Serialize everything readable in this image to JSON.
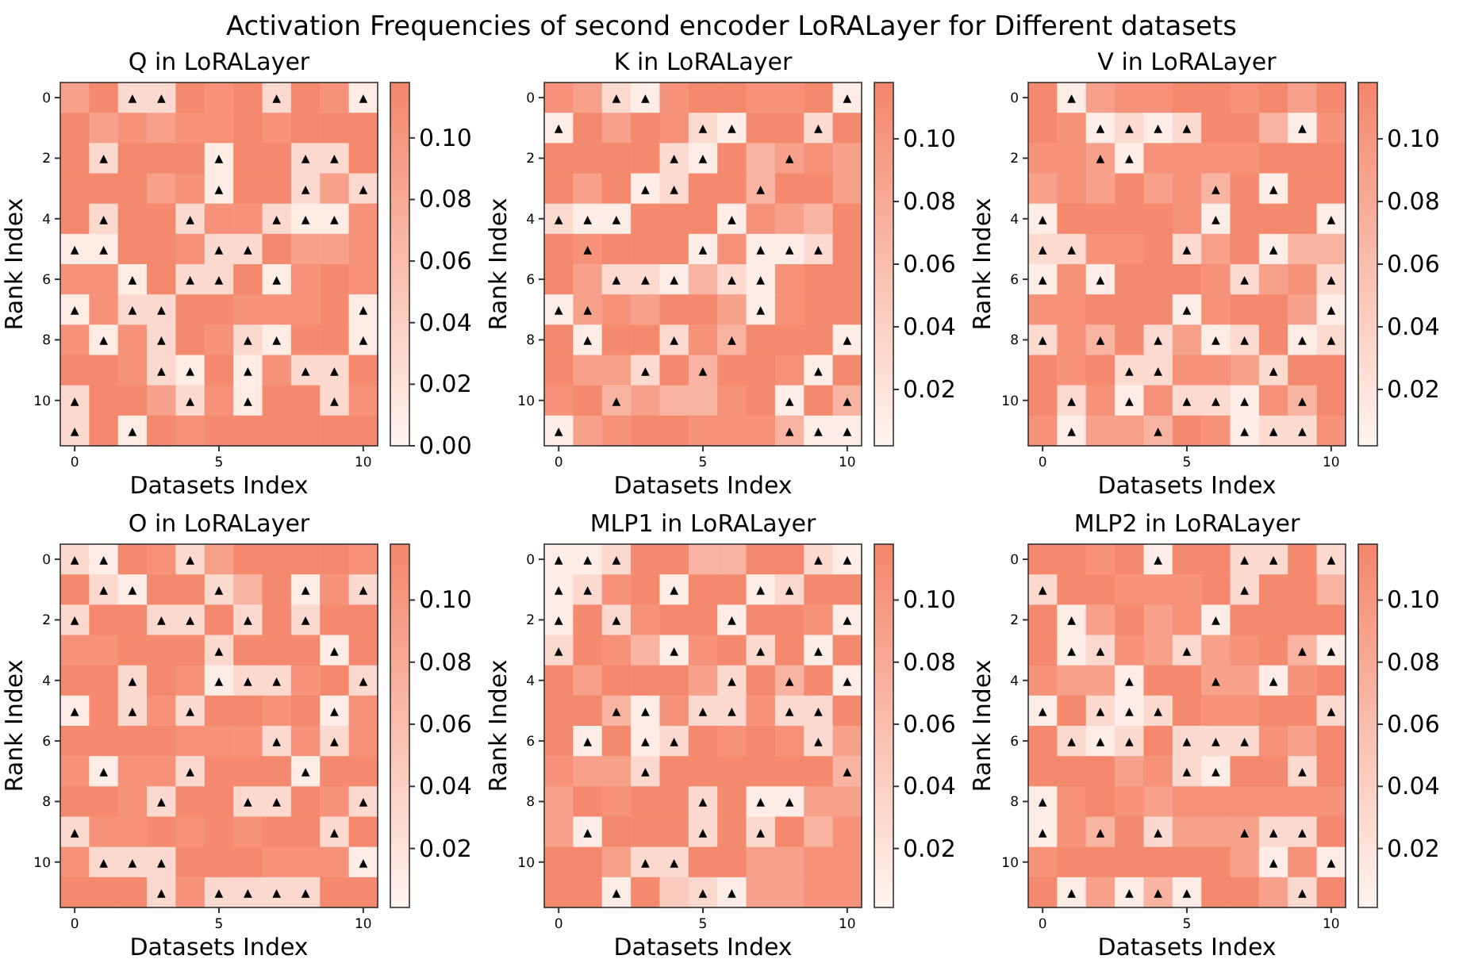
{
  "chart_data": [
    {
      "type": "heatmap",
      "title": "Q in LoRALayer",
      "xlabel": "Datasets Index",
      "ylabel": "Rank Index",
      "annotations": [
        "Activation Frequencies of second encoder LoRALayer for Different datasets"
      ],
      "categories": [
        "0",
        null,
        null,
        null,
        null,
        "5",
        null,
        null,
        null,
        null,
        "10"
      ],
      "y_categories": [
        "0",
        null,
        "2",
        null,
        "4",
        null,
        "6",
        null,
        "8",
        null,
        "10",
        null
      ],
      "clim": [
        0,
        0.118
      ],
      "cticks": [
        {
          "value": 0,
          "label": "0.00"
        },
        {
          "value": 0.02,
          "label": "0.02"
        },
        {
          "value": 0.04,
          "label": "0.04"
        },
        {
          "value": 0.06,
          "label": "0.06"
        },
        {
          "value": 0.08,
          "label": "0.08"
        },
        {
          "value": 0.1,
          "label": "0.10"
        }
      ],
      "cells": [
        [
          0.09,
          0.115,
          0.03,
          0.03,
          0.115,
          0.105,
          0.115,
          0.03,
          0.115,
          0.105,
          0.01
        ],
        [
          0.115,
          0.09,
          0.105,
          0.09,
          0.105,
          0.105,
          0.115,
          0.105,
          0.115,
          0.115,
          0.115
        ],
        [
          0.115,
          0.03,
          0.115,
          0.115,
          0.115,
          0.01,
          0.115,
          0.115,
          0.03,
          0.03,
          0.115
        ],
        [
          0.115,
          0.115,
          0.115,
          0.09,
          0.105,
          0.01,
          0.115,
          0.115,
          0.03,
          0.09,
          0.03
        ],
        [
          0.115,
          0.03,
          0.115,
          0.115,
          0.03,
          0.105,
          0.105,
          0.03,
          0.01,
          0.01,
          0.105
        ],
        [
          0.01,
          0.01,
          0.115,
          0.115,
          0.105,
          0.03,
          0.03,
          0.115,
          0.09,
          0.09,
          0.105
        ],
        [
          0.105,
          0.105,
          0.01,
          0.115,
          0.03,
          0.03,
          0.115,
          0.01,
          0.105,
          0.115,
          0.105
        ],
        [
          0.01,
          0.105,
          0.03,
          0.03,
          0.115,
          0.115,
          0.105,
          0.105,
          0.105,
          0.115,
          0.01
        ],
        [
          0.105,
          0.01,
          0.105,
          0.03,
          0.115,
          0.105,
          0.03,
          0.01,
          0.115,
          0.115,
          0.01
        ],
        [
          0.115,
          0.115,
          0.105,
          0.03,
          0.01,
          0.115,
          0.01,
          0.105,
          0.03,
          0.03,
          0.115
        ],
        [
          0.03,
          0.115,
          0.115,
          0.09,
          0.03,
          0.105,
          0.01,
          0.115,
          0.115,
          0.03,
          0.105
        ],
        [
          0.03,
          0.115,
          0.01,
          0.115,
          0.105,
          0.115,
          0.115,
          0.115,
          0.115,
          0.115,
          0.115
        ]
      ],
      "cell_labels": [
        [
          null,
          null,
          "▲",
          "▲",
          null,
          null,
          null,
          "▲",
          null,
          null,
          "▲"
        ],
        [
          null,
          null,
          null,
          null,
          null,
          null,
          null,
          null,
          null,
          null,
          null
        ],
        [
          null,
          "▲",
          null,
          null,
          null,
          "▲",
          null,
          null,
          "▲",
          "▲",
          null
        ],
        [
          null,
          null,
          null,
          null,
          null,
          "▲",
          null,
          null,
          "▲",
          null,
          "▲"
        ],
        [
          null,
          "▲",
          null,
          null,
          "▲",
          null,
          null,
          "▲",
          "▲",
          "▲",
          null
        ],
        [
          "▲",
          "▲",
          null,
          null,
          null,
          "▲",
          "▲",
          null,
          null,
          null,
          null
        ],
        [
          null,
          null,
          "▲",
          null,
          "▲",
          "▲",
          null,
          "▲",
          null,
          null,
          null
        ],
        [
          "▲",
          null,
          "▲",
          "▲",
          null,
          null,
          null,
          null,
          null,
          null,
          "▲"
        ],
        [
          null,
          "▲",
          null,
          "▲",
          null,
          null,
          "▲",
          "▲",
          null,
          null,
          "▲"
        ],
        [
          null,
          null,
          null,
          "▲",
          "▲",
          null,
          "▲",
          null,
          "▲",
          "▲",
          null
        ],
        [
          "▲",
          null,
          null,
          null,
          "▲",
          null,
          "▲",
          null,
          null,
          "▲",
          null
        ],
        [
          "▲",
          null,
          "▲",
          null,
          null,
          null,
          null,
          null,
          null,
          null,
          null
        ]
      ]
    },
    {
      "type": "heatmap",
      "title": "K in LoRALayer",
      "xlabel": "Datasets Index",
      "ylabel": "Rank Index",
      "categories": [
        "0",
        null,
        null,
        null,
        null,
        "5",
        null,
        null,
        null,
        null,
        "10"
      ],
      "y_categories": [
        "0",
        null,
        "2",
        null,
        "4",
        null,
        "6",
        null,
        "8",
        null,
        "10",
        null
      ],
      "clim": [
        0.002,
        0.118
      ],
      "cticks": [
        {
          "value": 0.02,
          "label": "0.02"
        },
        {
          "value": 0.04,
          "label": "0.04"
        },
        {
          "value": 0.06,
          "label": "0.06"
        },
        {
          "value": 0.08,
          "label": "0.08"
        },
        {
          "value": 0.1,
          "label": "0.10"
        }
      ],
      "cells": [
        [
          0.105,
          0.09,
          0.03,
          0.01,
          0.105,
          0.115,
          0.115,
          0.105,
          0.105,
          0.115,
          0.01
        ],
        [
          0.01,
          0.115,
          0.09,
          0.115,
          0.105,
          0.03,
          0.01,
          0.115,
          0.115,
          0.03,
          0.115
        ],
        [
          0.115,
          0.115,
          0.115,
          0.115,
          0.03,
          0.01,
          0.115,
          0.07,
          0.09,
          0.105,
          0.09
        ],
        [
          0.115,
          0.09,
          0.115,
          0.01,
          0.03,
          0.115,
          0.115,
          0.07,
          0.115,
          0.115,
          0.09
        ],
        [
          0.03,
          0.01,
          0.01,
          0.115,
          0.115,
          0.115,
          0.01,
          0.105,
          0.09,
          0.07,
          0.115
        ],
        [
          0.115,
          0.105,
          0.115,
          0.115,
          0.115,
          0.01,
          0.105,
          0.01,
          0.01,
          0.03,
          0.115
        ],
        [
          0.115,
          0.09,
          0.03,
          0.03,
          0.01,
          0.07,
          0.03,
          0.01,
          0.105,
          0.115,
          0.115
        ],
        [
          0.01,
          0.09,
          0.105,
          0.09,
          0.115,
          0.115,
          0.09,
          0.01,
          0.105,
          0.115,
          0.115
        ],
        [
          0.115,
          0.01,
          0.115,
          0.115,
          0.03,
          0.105,
          0.07,
          0.115,
          0.115,
          0.115,
          0.01
        ],
        [
          0.115,
          0.09,
          0.09,
          0.03,
          0.115,
          0.07,
          0.115,
          0.115,
          0.105,
          0.01,
          0.115
        ],
        [
          0.105,
          0.115,
          0.07,
          0.09,
          0.07,
          0.07,
          0.105,
          0.115,
          0.01,
          0.115,
          0.07
        ],
        [
          0.01,
          0.09,
          0.105,
          0.115,
          0.115,
          0.105,
          0.105,
          0.105,
          0.07,
          0.01,
          0.01
        ]
      ],
      "cell_labels": [
        [
          null,
          null,
          "▲",
          "▲",
          null,
          null,
          null,
          null,
          null,
          null,
          "▲"
        ],
        [
          "▲",
          null,
          null,
          null,
          null,
          "▲",
          "▲",
          null,
          null,
          "▲",
          null
        ],
        [
          null,
          null,
          null,
          null,
          "▲",
          "▲",
          null,
          null,
          "▲",
          null,
          null
        ],
        [
          null,
          null,
          null,
          "▲",
          "▲",
          null,
          null,
          "▲",
          null,
          null,
          null
        ],
        [
          "▲",
          "▲",
          "▲",
          null,
          null,
          null,
          "▲",
          null,
          null,
          null,
          null
        ],
        [
          null,
          "▲",
          null,
          null,
          null,
          "▲",
          null,
          "▲",
          "▲",
          "▲",
          null
        ],
        [
          null,
          null,
          "▲",
          "▲",
          "▲",
          null,
          "▲",
          "▲",
          null,
          null,
          null
        ],
        [
          "▲",
          "▲",
          null,
          null,
          null,
          null,
          null,
          "▲",
          null,
          null,
          null
        ],
        [
          null,
          "▲",
          null,
          null,
          "▲",
          null,
          "▲",
          null,
          null,
          null,
          "▲"
        ],
        [
          null,
          null,
          null,
          "▲",
          null,
          "▲",
          null,
          null,
          null,
          "▲",
          null
        ],
        [
          null,
          null,
          "▲",
          null,
          null,
          null,
          null,
          null,
          "▲",
          null,
          "▲"
        ],
        [
          "▲",
          null,
          null,
          null,
          null,
          null,
          null,
          null,
          "▲",
          "▲",
          "▲"
        ]
      ]
    },
    {
      "type": "heatmap",
      "title": "V in LoRALayer",
      "xlabel": "Datasets Index",
      "ylabel": "Rank Index",
      "categories": [
        "0",
        null,
        null,
        null,
        null,
        "5",
        null,
        null,
        null,
        null,
        "10"
      ],
      "y_categories": [
        "0",
        null,
        "2",
        null,
        "4",
        null,
        "6",
        null,
        "8",
        null,
        "10",
        null
      ],
      "clim": [
        0.002,
        0.118
      ],
      "cticks": [
        {
          "value": 0.02,
          "label": "0.02"
        },
        {
          "value": 0.04,
          "label": "0.04"
        },
        {
          "value": 0.06,
          "label": "0.06"
        },
        {
          "value": 0.08,
          "label": "0.08"
        },
        {
          "value": 0.1,
          "label": "0.10"
        }
      ],
      "cells": [
        [
          0.115,
          0.01,
          0.09,
          0.105,
          0.105,
          0.115,
          0.115,
          0.105,
          0.115,
          0.09,
          0.115
        ],
        [
          0.115,
          0.105,
          0.01,
          0.03,
          0.01,
          0.03,
          0.115,
          0.115,
          0.07,
          0.01,
          0.105
        ],
        [
          0.105,
          0.105,
          0.09,
          0.01,
          0.105,
          0.105,
          0.105,
          0.105,
          0.115,
          0.115,
          0.115
        ],
        [
          0.09,
          0.105,
          0.09,
          0.115,
          0.09,
          0.105,
          0.07,
          0.115,
          0.01,
          0.115,
          0.115
        ],
        [
          0.01,
          0.115,
          0.115,
          0.115,
          0.115,
          0.105,
          0.01,
          0.115,
          0.115,
          0.115,
          0.01
        ],
        [
          0.03,
          0.03,
          0.105,
          0.105,
          0.115,
          0.03,
          0.09,
          0.115,
          0.01,
          0.07,
          0.07
        ],
        [
          0.01,
          0.105,
          0.01,
          0.115,
          0.115,
          0.115,
          0.105,
          0.03,
          0.09,
          0.105,
          0.03
        ],
        [
          0.105,
          0.105,
          0.115,
          0.115,
          0.115,
          0.01,
          0.105,
          0.115,
          0.115,
          0.09,
          0.01
        ],
        [
          0.03,
          0.105,
          0.07,
          0.115,
          0.03,
          0.09,
          0.01,
          0.03,
          0.115,
          0.01,
          0.03
        ],
        [
          0.115,
          0.105,
          0.115,
          0.03,
          0.03,
          0.105,
          0.105,
          0.09,
          0.03,
          0.115,
          0.115
        ],
        [
          0.115,
          0.03,
          0.105,
          0.01,
          0.105,
          0.03,
          0.03,
          0.01,
          0.105,
          0.07,
          0.115
        ],
        [
          0.105,
          0.01,
          0.09,
          0.09,
          0.07,
          0.115,
          0.105,
          0.01,
          0.03,
          0.03,
          0.105
        ]
      ],
      "cell_labels": [
        [
          null,
          "▲",
          null,
          null,
          null,
          null,
          null,
          null,
          null,
          null,
          null
        ],
        [
          null,
          null,
          "▲",
          "▲",
          "▲",
          "▲",
          null,
          null,
          null,
          "▲",
          null
        ],
        [
          null,
          null,
          "▲",
          "▲",
          null,
          null,
          null,
          null,
          null,
          null,
          null
        ],
        [
          null,
          null,
          null,
          null,
          null,
          null,
          "▲",
          null,
          "▲",
          null,
          null
        ],
        [
          "▲",
          null,
          null,
          null,
          null,
          null,
          "▲",
          null,
          null,
          null,
          "▲"
        ],
        [
          "▲",
          "▲",
          null,
          null,
          null,
          "▲",
          null,
          null,
          "▲",
          null,
          null
        ],
        [
          "▲",
          null,
          "▲",
          null,
          null,
          null,
          null,
          "▲",
          null,
          null,
          "▲"
        ],
        [
          null,
          null,
          null,
          null,
          null,
          "▲",
          null,
          null,
          null,
          null,
          "▲"
        ],
        [
          "▲",
          null,
          "▲",
          null,
          "▲",
          null,
          "▲",
          "▲",
          null,
          "▲",
          "▲"
        ],
        [
          null,
          null,
          null,
          "▲",
          "▲",
          null,
          null,
          null,
          "▲",
          null,
          null
        ],
        [
          null,
          "▲",
          null,
          "▲",
          null,
          "▲",
          "▲",
          "▲",
          null,
          "▲",
          null
        ],
        [
          null,
          "▲",
          null,
          null,
          "▲",
          null,
          null,
          "▲",
          "▲",
          "▲",
          null
        ]
      ]
    },
    {
      "type": "heatmap",
      "title": "O in LoRALayer",
      "xlabel": "Datasets Index",
      "ylabel": "Rank Index",
      "categories": [
        "0",
        null,
        null,
        null,
        null,
        "5",
        null,
        null,
        null,
        null,
        "10"
      ],
      "y_categories": [
        "0",
        null,
        "2",
        null,
        "4",
        null,
        "6",
        null,
        "8",
        null,
        "10",
        null
      ],
      "clim": [
        0.001,
        0.118
      ],
      "cticks": [
        {
          "value": 0.02,
          "label": "0.02"
        },
        {
          "value": 0.04,
          "label": "0.04"
        },
        {
          "value": 0.06,
          "label": "0.06"
        },
        {
          "value": 0.08,
          "label": "0.08"
        },
        {
          "value": 0.1,
          "label": "0.10"
        }
      ],
      "cells": [
        [
          0.03,
          0.01,
          0.115,
          0.105,
          0.03,
          0.09,
          0.115,
          0.115,
          0.115,
          0.115,
          0.105
        ],
        [
          0.115,
          0.03,
          0.01,
          0.115,
          0.115,
          0.03,
          0.07,
          0.115,
          0.01,
          0.105,
          0.03
        ],
        [
          0.03,
          0.115,
          0.115,
          0.03,
          0.03,
          0.115,
          0.03,
          0.115,
          0.03,
          0.115,
          0.115
        ],
        [
          0.105,
          0.105,
          0.115,
          0.115,
          0.115,
          0.03,
          0.115,
          0.115,
          0.115,
          0.01,
          0.115
        ],
        [
          0.115,
          0.115,
          0.03,
          0.115,
          0.105,
          0.01,
          0.03,
          0.03,
          0.105,
          0.115,
          0.03
        ],
        [
          0.01,
          0.115,
          0.03,
          0.105,
          0.03,
          0.115,
          0.115,
          0.105,
          0.115,
          0.01,
          0.105
        ],
        [
          0.115,
          0.115,
          0.115,
          0.115,
          0.105,
          0.105,
          0.105,
          0.03,
          0.105,
          0.03,
          0.105
        ],
        [
          0.105,
          0.01,
          0.105,
          0.105,
          0.03,
          0.115,
          0.115,
          0.115,
          0.01,
          0.115,
          0.115
        ],
        [
          0.115,
          0.115,
          0.105,
          0.03,
          0.115,
          0.115,
          0.03,
          0.03,
          0.115,
          0.105,
          0.03
        ],
        [
          0.03,
          0.105,
          0.105,
          0.115,
          0.105,
          0.115,
          0.105,
          0.115,
          0.115,
          0.03,
          0.115
        ],
        [
          0.105,
          0.03,
          0.03,
          0.03,
          0.115,
          0.115,
          0.115,
          0.105,
          0.105,
          0.105,
          0.01
        ],
        [
          0.115,
          0.115,
          0.115,
          0.03,
          0.105,
          0.03,
          0.03,
          0.03,
          0.03,
          0.115,
          0.115
        ]
      ],
      "cell_labels": [
        [
          "▲",
          "▲",
          null,
          null,
          "▲",
          null,
          null,
          null,
          null,
          null,
          null
        ],
        [
          null,
          "▲",
          "▲",
          null,
          null,
          "▲",
          null,
          null,
          "▲",
          null,
          "▲"
        ],
        [
          "▲",
          null,
          null,
          "▲",
          "▲",
          null,
          "▲",
          null,
          "▲",
          null,
          null
        ],
        [
          null,
          null,
          null,
          null,
          null,
          "▲",
          null,
          null,
          null,
          "▲",
          null
        ],
        [
          null,
          null,
          "▲",
          null,
          null,
          "▲",
          "▲",
          "▲",
          null,
          null,
          "▲"
        ],
        [
          "▲",
          null,
          "▲",
          null,
          "▲",
          null,
          null,
          null,
          null,
          "▲",
          null
        ],
        [
          null,
          null,
          null,
          null,
          null,
          null,
          null,
          "▲",
          null,
          "▲",
          null
        ],
        [
          null,
          "▲",
          null,
          null,
          "▲",
          null,
          null,
          null,
          "▲",
          null,
          null
        ],
        [
          null,
          null,
          null,
          "▲",
          null,
          null,
          "▲",
          "▲",
          null,
          null,
          "▲"
        ],
        [
          "▲",
          null,
          null,
          null,
          null,
          null,
          null,
          null,
          null,
          "▲",
          null
        ],
        [
          null,
          "▲",
          "▲",
          "▲",
          null,
          null,
          null,
          null,
          null,
          null,
          "▲"
        ],
        [
          null,
          null,
          null,
          "▲",
          null,
          "▲",
          "▲",
          "▲",
          "▲",
          null,
          null
        ]
      ]
    },
    {
      "type": "heatmap",
      "title": "MLP1 in LoRALayer",
      "xlabel": "Datasets Index",
      "ylabel": "Rank Index",
      "categories": [
        "0",
        null,
        null,
        null,
        null,
        "5",
        null,
        null,
        null,
        null,
        "10"
      ],
      "y_categories": [
        "0",
        null,
        "2",
        null,
        "4",
        null,
        "6",
        null,
        "8",
        null,
        "10",
        null
      ],
      "clim": [
        0.001,
        0.118
      ],
      "cticks": [
        {
          "value": 0.02,
          "label": "0.02"
        },
        {
          "value": 0.04,
          "label": "0.04"
        },
        {
          "value": 0.06,
          "label": "0.06"
        },
        {
          "value": 0.08,
          "label": "0.08"
        },
        {
          "value": 0.1,
          "label": "0.10"
        }
      ],
      "cells": [
        [
          0.01,
          0.01,
          0.03,
          0.115,
          0.115,
          0.07,
          0.07,
          0.115,
          0.115,
          0.03,
          0.01
        ],
        [
          0.01,
          0.03,
          0.105,
          0.115,
          0.01,
          0.115,
          0.115,
          0.01,
          0.03,
          0.115,
          0.115
        ],
        [
          0.01,
          0.115,
          0.03,
          0.105,
          0.115,
          0.115,
          0.01,
          0.115,
          0.115,
          0.105,
          0.01
        ],
        [
          0.03,
          0.115,
          0.105,
          0.07,
          0.01,
          0.105,
          0.115,
          0.03,
          0.115,
          0.01,
          0.115
        ],
        [
          0.115,
          0.09,
          0.115,
          0.115,
          0.115,
          0.09,
          0.03,
          0.115,
          0.07,
          0.115,
          0.01
        ],
        [
          0.115,
          0.115,
          0.07,
          0.01,
          0.105,
          0.03,
          0.03,
          0.105,
          0.03,
          0.03,
          0.115
        ],
        [
          0.115,
          0.01,
          0.115,
          0.01,
          0.03,
          0.115,
          0.105,
          0.115,
          0.105,
          0.03,
          0.09
        ],
        [
          0.105,
          0.09,
          0.09,
          0.03,
          0.115,
          0.115,
          0.115,
          0.115,
          0.115,
          0.115,
          0.07
        ],
        [
          0.09,
          0.115,
          0.105,
          0.115,
          0.115,
          0.03,
          0.115,
          0.01,
          0.01,
          0.09,
          0.09
        ],
        [
          0.09,
          0.01,
          0.115,
          0.115,
          0.115,
          0.03,
          0.115,
          0.03,
          0.115,
          0.07,
          0.105
        ],
        [
          0.115,
          0.115,
          0.09,
          0.03,
          0.03,
          0.115,
          0.115,
          0.09,
          0.09,
          0.105,
          0.105
        ],
        [
          0.115,
          0.115,
          0.01,
          0.115,
          0.045,
          0.03,
          0.01,
          0.09,
          0.09,
          0.105,
          0.105
        ]
      ],
      "cell_labels": [
        [
          "▲",
          "▲",
          "▲",
          null,
          null,
          null,
          null,
          null,
          null,
          "▲",
          "▲"
        ],
        [
          "▲",
          "▲",
          null,
          null,
          "▲",
          null,
          null,
          "▲",
          "▲",
          null,
          null
        ],
        [
          "▲",
          null,
          "▲",
          null,
          null,
          null,
          "▲",
          null,
          null,
          null,
          "▲"
        ],
        [
          "▲",
          null,
          null,
          null,
          "▲",
          null,
          null,
          "▲",
          null,
          "▲",
          null
        ],
        [
          null,
          null,
          null,
          null,
          null,
          null,
          "▲",
          null,
          "▲",
          null,
          "▲"
        ],
        [
          null,
          null,
          "▲",
          "▲",
          null,
          "▲",
          "▲",
          null,
          "▲",
          "▲",
          null
        ],
        [
          null,
          "▲",
          null,
          "▲",
          "▲",
          null,
          null,
          null,
          null,
          "▲",
          null
        ],
        [
          null,
          null,
          null,
          "▲",
          null,
          null,
          null,
          null,
          null,
          null,
          "▲"
        ],
        [
          null,
          null,
          null,
          null,
          null,
          "▲",
          null,
          "▲",
          "▲",
          null,
          null
        ],
        [
          null,
          "▲",
          null,
          null,
          null,
          "▲",
          null,
          "▲",
          null,
          null,
          null
        ],
        [
          null,
          null,
          null,
          "▲",
          "▲",
          null,
          null,
          null,
          null,
          null,
          null
        ],
        [
          null,
          null,
          "▲",
          null,
          null,
          "▲",
          "▲",
          null,
          null,
          null,
          null
        ]
      ]
    },
    {
      "type": "heatmap",
      "title": "MLP2 in LoRALayer",
      "xlabel": "Datasets Index",
      "ylabel": "Rank Index",
      "categories": [
        "0",
        null,
        null,
        null,
        null,
        "5",
        null,
        null,
        null,
        null,
        "10"
      ],
      "y_categories": [
        "0",
        null,
        "2",
        null,
        "4",
        null,
        "6",
        null,
        "8",
        null,
        "10",
        null
      ],
      "clim": [
        0.001,
        0.118
      ],
      "cticks": [
        {
          "value": 0.02,
          "label": "0.02"
        },
        {
          "value": 0.04,
          "label": "0.04"
        },
        {
          "value": 0.06,
          "label": "0.06"
        },
        {
          "value": 0.08,
          "label": "0.08"
        },
        {
          "value": 0.1,
          "label": "0.10"
        }
      ],
      "cells": [
        [
          0.115,
          0.115,
          0.105,
          0.115,
          0.01,
          0.115,
          0.115,
          0.03,
          0.03,
          0.115,
          0.03
        ],
        [
          0.03,
          0.115,
          0.115,
          0.105,
          0.105,
          0.105,
          0.115,
          0.03,
          0.115,
          0.115,
          0.07
        ],
        [
          0.115,
          0.01,
          0.09,
          0.115,
          0.09,
          0.105,
          0.01,
          0.115,
          0.115,
          0.115,
          0.115
        ],
        [
          0.115,
          0.01,
          0.03,
          0.105,
          0.09,
          0.03,
          0.09,
          0.105,
          0.115,
          0.07,
          0.01
        ],
        [
          0.105,
          0.09,
          0.09,
          0.01,
          0.115,
          0.115,
          0.09,
          0.09,
          0.01,
          0.105,
          0.115
        ],
        [
          0.01,
          0.115,
          0.03,
          0.01,
          0.03,
          0.115,
          0.105,
          0.105,
          0.115,
          0.115,
          0.03
        ],
        [
          0.115,
          0.03,
          0.01,
          0.03,
          0.115,
          0.03,
          0.03,
          0.03,
          0.105,
          0.09,
          0.115
        ],
        [
          0.115,
          0.115,
          0.115,
          0.09,
          0.105,
          0.03,
          0.01,
          0.115,
          0.115,
          0.03,
          0.115
        ],
        [
          0.01,
          0.105,
          0.115,
          0.105,
          0.09,
          0.105,
          0.105,
          0.105,
          0.105,
          0.105,
          0.105
        ],
        [
          0.01,
          0.105,
          0.07,
          0.115,
          0.03,
          0.09,
          0.09,
          0.09,
          0.03,
          0.03,
          0.115
        ],
        [
          0.105,
          0.115,
          0.115,
          0.115,
          0.115,
          0.115,
          0.115,
          0.09,
          0.01,
          0.105,
          0.01
        ],
        [
          0.115,
          0.01,
          0.09,
          0.01,
          0.07,
          0.01,
          0.115,
          0.115,
          0.09,
          0.03,
          0.115
        ]
      ],
      "cell_labels": [
        [
          null,
          null,
          null,
          null,
          "▲",
          null,
          null,
          "▲",
          "▲",
          null,
          "▲"
        ],
        [
          "▲",
          null,
          null,
          null,
          null,
          null,
          null,
          "▲",
          null,
          null,
          null
        ],
        [
          null,
          "▲",
          null,
          null,
          null,
          null,
          "▲",
          null,
          null,
          null,
          null
        ],
        [
          null,
          "▲",
          "▲",
          null,
          null,
          "▲",
          null,
          null,
          null,
          "▲",
          "▲"
        ],
        [
          null,
          null,
          null,
          "▲",
          null,
          null,
          "▲",
          null,
          "▲",
          null,
          null
        ],
        [
          "▲",
          null,
          "▲",
          "▲",
          "▲",
          null,
          null,
          null,
          null,
          null,
          "▲"
        ],
        [
          null,
          "▲",
          "▲",
          "▲",
          null,
          "▲",
          "▲",
          "▲",
          null,
          null,
          null
        ],
        [
          null,
          null,
          null,
          null,
          null,
          "▲",
          "▲",
          null,
          null,
          "▲",
          null
        ],
        [
          "▲",
          null,
          null,
          null,
          null,
          null,
          null,
          null,
          null,
          null,
          null
        ],
        [
          "▲",
          null,
          "▲",
          null,
          "▲",
          null,
          null,
          "▲",
          "▲",
          "▲",
          null
        ],
        [
          null,
          null,
          null,
          null,
          null,
          null,
          null,
          null,
          "▲",
          null,
          "▲"
        ],
        [
          null,
          "▲",
          null,
          "▲",
          "▲",
          "▲",
          null,
          null,
          null,
          "▲",
          null
        ]
      ]
    }
  ]
}
